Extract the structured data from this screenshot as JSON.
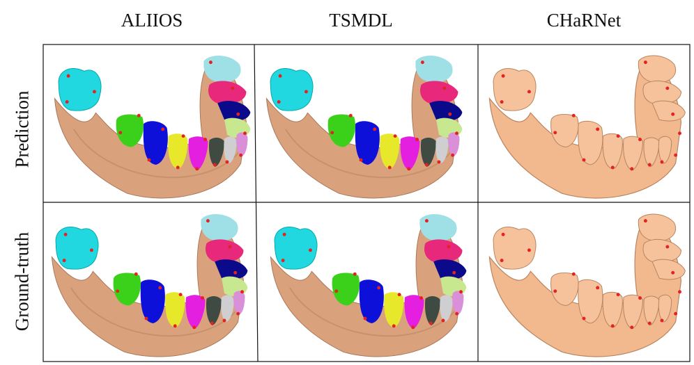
{
  "columns": [
    "ALIIOS",
    "TSMDL",
    "CHaRNet"
  ],
  "rows": [
    "Prediction",
    "Ground-truth"
  ]
}
